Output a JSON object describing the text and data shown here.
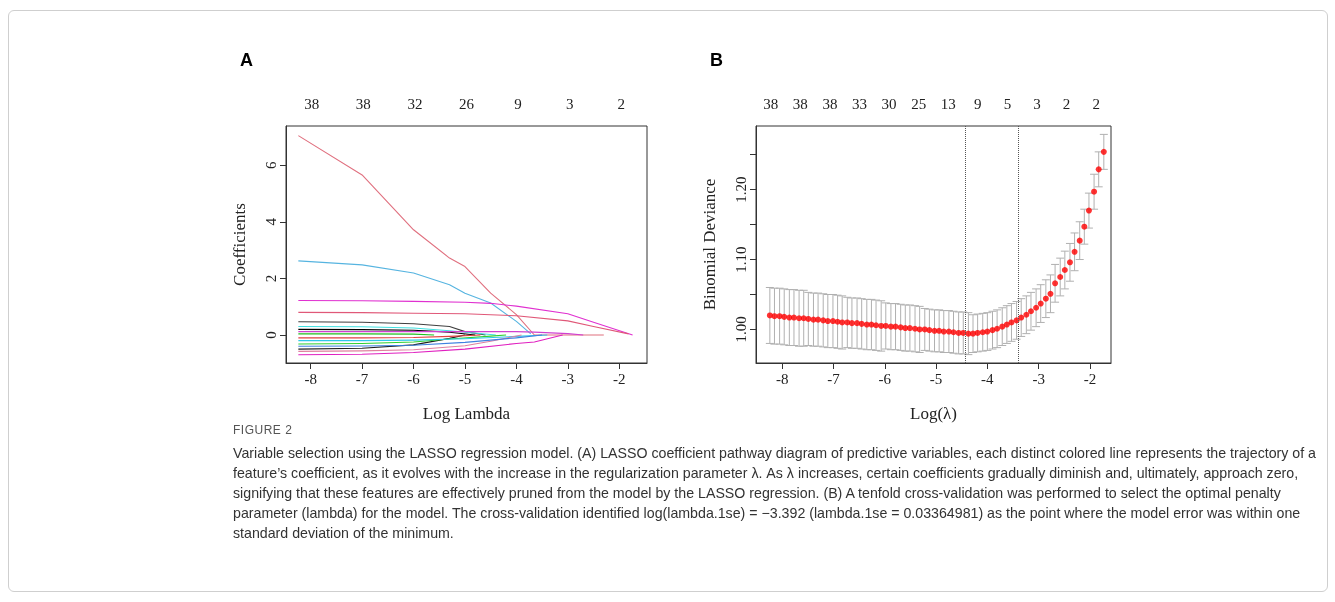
{
  "chart_data": [
    {
      "type": "line",
      "title": "A",
      "xlabel": "Log Lambda",
      "ylabel": "Coefficients",
      "marker": "none",
      "line_style": "solid",
      "grid": false,
      "xlim": [
        -8.48,
        -1.46
      ],
      "xticks": [
        -8,
        -7,
        -6,
        -5,
        -4,
        -3,
        -2
      ],
      "ylim": [
        -0.99,
        7.39
      ],
      "yticks": [
        0,
        2,
        4,
        6
      ],
      "series": [
        {
          "color": "#e0707f",
          "x": [
            -8.24,
            -7,
            -6,
            -5.3,
            -5,
            -4.5,
            -4,
            -3.65,
            -2.3
          ],
          "values": [
            7.05,
            5.66,
            3.72,
            2.72,
            2.42,
            1.48,
            0.72,
            0,
            0
          ]
        },
        {
          "color": "#56b4e0",
          "x": [
            -8.24,
            -7,
            -6,
            -5.3,
            -5,
            -4.5,
            -4,
            -3.72
          ],
          "values": [
            2.62,
            2.48,
            2.19,
            1.78,
            1.48,
            1.13,
            0.48,
            0.04
          ]
        },
        {
          "color": "#e030d0",
          "x": [
            -8.24,
            -7,
            -6,
            -5,
            -4.5,
            -4,
            -3,
            -2.5,
            -1.74
          ],
          "values": [
            1.22,
            1.21,
            1.19,
            1.16,
            1.12,
            1.02,
            0.75,
            0.45,
            0
          ]
        },
        {
          "color": "#e05878",
          "x": [
            -8.24,
            -7,
            -6,
            -5,
            -4,
            -3,
            -2.5,
            -1.82
          ],
          "values": [
            0.8,
            0.79,
            0.77,
            0.75,
            0.68,
            0.5,
            0.3,
            0.04
          ]
        },
        {
          "color": "#404040",
          "x": [
            -8.24,
            -7,
            -6,
            -5.3,
            -5,
            -4.6
          ],
          "values": [
            0.47,
            0.45,
            0.4,
            0.3,
            0.12,
            0
          ]
        },
        {
          "color": "#000000",
          "x": [
            -8.24,
            -7,
            -6,
            -5.3,
            -4.8
          ],
          "values": [
            0.2,
            0.19,
            0.17,
            0.1,
            0
          ]
        },
        {
          "color": "#40e0e0",
          "x": [
            -8.24,
            -7,
            -6,
            -5.3,
            -4.4
          ],
          "values": [
            0.3,
            0.29,
            0.25,
            0.15,
            0
          ]
        },
        {
          "color": "#20c020",
          "x": [
            -8.24,
            -7,
            -6,
            -5.6
          ],
          "values": [
            0.04,
            0.04,
            0.03,
            0
          ]
        },
        {
          "color": "#d040d0",
          "x": [
            -8.24,
            -6,
            -4,
            -3.65,
            -3,
            -2.7
          ],
          "values": [
            0.12,
            0.12,
            0.12,
            0.1,
            0.05,
            0
          ]
        },
        {
          "color": "#202020",
          "x": [
            -8.24,
            -7,
            -6,
            -5.3,
            -5
          ],
          "values": [
            -0.5,
            -0.47,
            -0.35,
            -0.12,
            0
          ]
        },
        {
          "color": "#30d030",
          "x": [
            -8.24,
            -7,
            -6,
            -5.3,
            -4.5,
            -4.2
          ],
          "values": [
            -0.32,
            -0.3,
            -0.25,
            -0.14,
            -0.04,
            0
          ]
        },
        {
          "color": "#30c8e8",
          "x": [
            -8.24,
            -7,
            -6,
            -5,
            -4,
            -3.4
          ],
          "values": [
            -0.2,
            -0.2,
            -0.18,
            -0.13,
            -0.05,
            0
          ]
        },
        {
          "color": "#e020c0",
          "x": [
            -8.24,
            -7,
            -6,
            -5,
            -4,
            -3.65,
            -3.1
          ],
          "values": [
            -0.7,
            -0.68,
            -0.62,
            -0.5,
            -0.3,
            -0.25,
            0
          ]
        },
        {
          "color": "#e080a0",
          "x": [
            -8.24,
            -7,
            -6,
            -5,
            -4.5,
            -3.9
          ],
          "values": [
            -0.58,
            -0.56,
            -0.52,
            -0.38,
            -0.22,
            0
          ]
        },
        {
          "color": "#4080e0",
          "x": [
            -8.24,
            -7,
            -6,
            -5,
            -4.5,
            -4,
            -3.5
          ],
          "values": [
            -0.4,
            -0.39,
            -0.36,
            -0.26,
            -0.18,
            -0.1,
            0
          ]
        },
        {
          "color": "#e04040",
          "x": [
            -8.24,
            -7,
            -6,
            -5.3,
            -4.7
          ],
          "values": [
            -0.1,
            -0.1,
            -0.09,
            -0.05,
            0
          ]
        }
      ],
      "subtitle": "38 38 32 26 9 3 2",
      "annotations": [
        "FIGURE 2",
        "Variable selection using the LASSO regression model. (A) LASSO coefficient pathway diagram of predictive variables, each distinct colored line represents the trajectory of a feature’s coefficient, as it evolves with the increase in the regularization parameter λ. As λ increases, certain coefficients gradually diminish and, ultimately, approach zero, signifying that these features are effectively pruned from the model by the LASSO regression. (B) A tenfold cross-validation was performed to select the optimal penalty parameter (lambda) for the model. The cross-validation identified log(lambda.1se) = −3.392 (lambda.1se = 0.03364981) as the point where the model error was within one standard deviation of the minimum."
      ]
    },
    {
      "type": "scatter",
      "title": "B",
      "xlabel": "Log(λ)",
      "ylabel": "Binomial Deviance",
      "marker": "circle",
      "grid": false,
      "xlim": [
        -8.51,
        -1.59
      ],
      "xticks": [
        -8,
        -7,
        -6,
        -5,
        -4,
        -3,
        -2
      ],
      "subtitle": "38 38 38 33 30 25 13 9 5 3 2 2",
      "ylim": [
        0.952,
        1.291
      ],
      "yticks": [
        {
          "value": 1,
          "label": "1.00"
        },
        {
          "value": 1.05,
          "label": null
        },
        {
          "value": 1.1,
          "label": "1.10"
        },
        {
          "value": 1.15,
          "label": null
        },
        {
          "value": 1.2,
          "label": "1.20"
        },
        {
          "value": 1.25,
          "label": null
        }
      ],
      "ref_lines": [
        {
          "axis": "x",
          "value": -4.43,
          "color": "#555555",
          "line_style": "dotted"
        },
        {
          "axis": "x",
          "value": -3.39,
          "color": "#555555",
          "line_style": "dotted"
        }
      ],
      "x": [
        -8.24,
        -8.15,
        -8.05,
        -7.96,
        -7.86,
        -7.77,
        -7.67,
        -7.58,
        -7.49,
        -7.39,
        -7.3,
        -7.2,
        -7.11,
        -7.01,
        -6.92,
        -6.83,
        -6.73,
        -6.64,
        -6.54,
        -6.45,
        -6.35,
        -6.26,
        -6.17,
        -6.07,
        -5.98,
        -5.88,
        -5.79,
        -5.69,
        -5.6,
        -5.51,
        -5.41,
        -5.32,
        -5.22,
        -5.13,
        -5.03,
        -4.94,
        -4.85,
        -4.75,
        -4.66,
        -4.56,
        -4.47,
        -4.37,
        -4.28,
        -4.19,
        -4.09,
        -4,
        -3.9,
        -3.81,
        -3.71,
        -3.62,
        -3.53,
        -3.43,
        -3.34,
        -3.24,
        -3.15,
        -3.05,
        -2.96,
        -2.86,
        -2.77,
        -2.68,
        -2.58,
        -2.49,
        -2.39,
        -2.3,
        -2.2,
        -2.11,
        -2.02,
        -1.92,
        -1.83,
        -1.73
      ],
      "series": [
        {
          "color": "#ff0000",
          "values": [
            1.02,
            1.019,
            1.019,
            1.018,
            1.017,
            1.017,
            1.016,
            1.016,
            1.015,
            1.014,
            1.014,
            1.013,
            1.012,
            1.012,
            1.011,
            1.01,
            1.01,
            1.009,
            1.009,
            1.008,
            1.007,
            1.007,
            1.006,
            1.005,
            1.005,
            1.004,
            1.004,
            1.003,
            1.002,
            1.002,
            1.001,
            1,
            1,
            0.999,
            0.998,
            0.998,
            0.997,
            0.997,
            0.996,
            0.995,
            0.995,
            0.994,
            0.994,
            0.995,
            0.996,
            0.997,
            0.999,
            1.001,
            1.004,
            1.007,
            1.01,
            1.013,
            1.017,
            1.021,
            1.026,
            1.031,
            1.037,
            1.044,
            1.051,
            1.066,
            1.075,
            1.085,
            1.096,
            1.111,
            1.127,
            1.147,
            1.17,
            1.197,
            1.229,
            1.254
          ],
          "errors": [
            0.04,
            0.04,
            0.04,
            0.04,
            0.04,
            0.04,
            0.04,
            0.04,
            0.038,
            0.038,
            0.038,
            0.038,
            0.038,
            0.038,
            0.038,
            0.038,
            0.036,
            0.036,
            0.036,
            0.036,
            0.036,
            0.036,
            0.036,
            0.036,
            0.033,
            0.033,
            0.033,
            0.033,
            0.033,
            0.033,
            0.033,
            0.033,
            0.03,
            0.03,
            0.03,
            0.03,
            0.03,
            0.03,
            0.03,
            0.03,
            0.03,
            0.03,
            0.027,
            0.027,
            0.027,
            0.027,
            0.027,
            0.027,
            0.027,
            0.027,
            0.027,
            0.027,
            0.027,
            0.027,
            0.027,
            0.027,
            0.027,
            0.027,
            0.027,
            0.027,
            0.027,
            0.027,
            0.027,
            0.027,
            0.027,
            0.025,
            0.025,
            0.025,
            0.025,
            0.025
          ]
        }
      ]
    }
  ]
}
